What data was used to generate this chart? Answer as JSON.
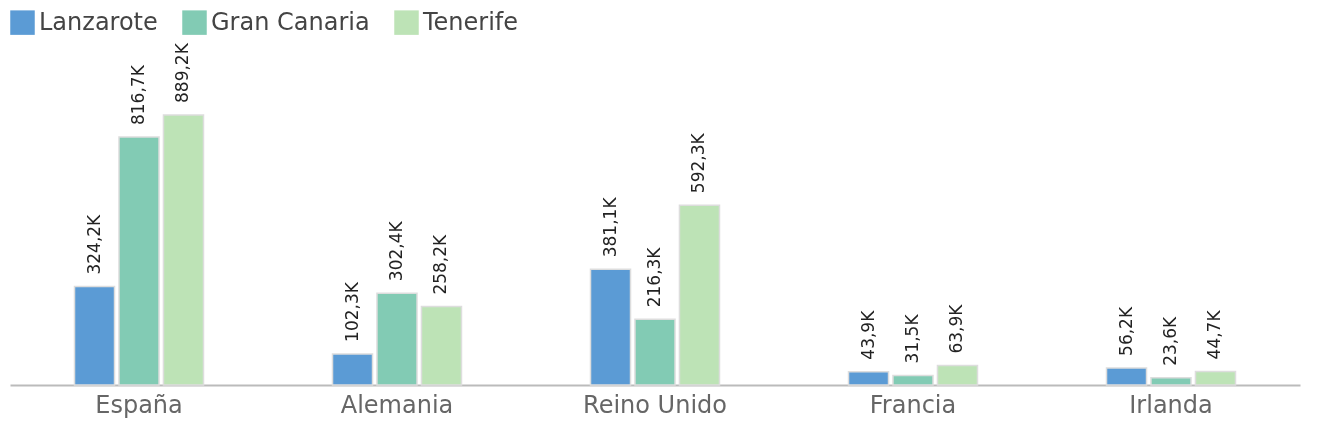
{
  "chart_data": {
    "type": "bar",
    "categories": [
      "España",
      "Alemania",
      "Reino Unido",
      "Francia",
      "Irlanda"
    ],
    "legend": "top",
    "grid": false,
    "series": [
      {
        "name": "Lanzarote",
        "color": "#5b9bd5",
        "values": [
          324200,
          102300,
          381100,
          43900,
          56200
        ],
        "value_labels": [
          "324,2K",
          "102,3K",
          "381,1K",
          "43,9K",
          "56,2K"
        ]
      },
      {
        "name": "Gran Canaria",
        "color": "#82cbb4",
        "values": [
          816700,
          302400,
          216300,
          31500,
          23600
        ],
        "value_labels": [
          "816,7K",
          "302,4K",
          "216,3K",
          "31,5K",
          "23,6K"
        ]
      },
      {
        "name": "Tenerife",
        "color": "#bde3b6",
        "values": [
          889200,
          258200,
          592300,
          63900,
          44700
        ],
        "value_labels": [
          "889,2K",
          "258,2K",
          "592,3K",
          "63,9K",
          "44,7K"
        ]
      }
    ]
  }
}
